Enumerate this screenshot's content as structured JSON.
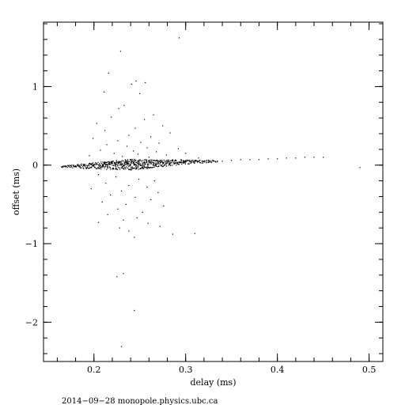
{
  "chart_data": {
    "type": "scatter",
    "xlabel": "delay (ms)",
    "ylabel": "offset (ms)",
    "xlim": [
      0.145,
      0.515
    ],
    "ylim": [
      -2.5,
      1.82
    ],
    "x_ticks": [
      0.2,
      0.3,
      0.4,
      0.5
    ],
    "x_tick_labels": [
      "0.2",
      "0.3",
      "0.4",
      "0.5"
    ],
    "y_ticks": [
      -2,
      -1,
      0,
      1
    ],
    "y_tick_labels": [
      "−2",
      "−1",
      "0",
      "1"
    ],
    "grid": false,
    "marker": "dot",
    "marker_color": "#000000",
    "series": [
      {
        "points": [
          [
            0.165,
            -0.02
          ],
          [
            0.17,
            -0.02
          ],
          [
            0.175,
            -0.01
          ],
          [
            0.18,
            -0.02
          ],
          [
            0.185,
            -0.02
          ],
          [
            0.19,
            -0.01
          ],
          [
            0.195,
            -0.01
          ],
          [
            0.2,
            -0.01
          ],
          [
            0.205,
            0.0
          ],
          [
            0.21,
            0.0
          ],
          [
            0.215,
            0.0
          ],
          [
            0.22,
            0.0
          ],
          [
            0.225,
            0.01
          ],
          [
            0.23,
            0.0
          ],
          [
            0.235,
            0.01
          ],
          [
            0.24,
            0.01
          ],
          [
            0.245,
            0.01
          ],
          [
            0.25,
            0.01
          ],
          [
            0.255,
            0.02
          ],
          [
            0.26,
            0.02
          ],
          [
            0.265,
            0.02
          ],
          [
            0.27,
            0.02
          ],
          [
            0.275,
            0.03
          ],
          [
            0.28,
            0.03
          ],
          [
            0.285,
            0.03
          ],
          [
            0.29,
            0.03
          ],
          [
            0.295,
            0.04
          ],
          [
            0.3,
            0.04
          ],
          [
            0.305,
            0.04
          ],
          [
            0.31,
            0.04
          ],
          [
            0.315,
            0.05
          ],
          [
            0.32,
            0.05
          ],
          [
            0.325,
            0.05
          ],
          [
            0.33,
            0.05
          ],
          [
            0.34,
            0.05
          ],
          [
            0.35,
            0.06
          ],
          [
            0.36,
            0.07
          ],
          [
            0.37,
            0.07
          ],
          [
            0.38,
            0.07
          ],
          [
            0.39,
            0.08
          ],
          [
            0.4,
            0.08
          ],
          [
            0.41,
            0.09
          ],
          [
            0.42,
            0.09
          ],
          [
            0.43,
            0.1
          ],
          [
            0.44,
            0.1
          ],
          [
            0.45,
            0.1
          ],
          [
            0.49,
            -0.03
          ],
          [
            0.229,
            1.45
          ],
          [
            0.293,
            1.62
          ],
          [
            0.216,
            1.17
          ],
          [
            0.246,
            1.07
          ],
          [
            0.241,
            1.03
          ],
          [
            0.256,
            1.05
          ],
          [
            0.211,
            0.93
          ],
          [
            0.25,
            0.91
          ],
          [
            0.233,
            0.76
          ],
          [
            0.227,
            0.72
          ],
          [
            0.265,
            0.64
          ],
          [
            0.219,
            0.61
          ],
          [
            0.255,
            0.58
          ],
          [
            0.203,
            0.53
          ],
          [
            0.275,
            0.5
          ],
          [
            0.245,
            0.47
          ],
          [
            0.212,
            0.44
          ],
          [
            0.283,
            0.41
          ],
          [
            0.238,
            0.38
          ],
          [
            0.262,
            0.36
          ],
          [
            0.199,
            0.34
          ],
          [
            0.226,
            0.31
          ],
          [
            0.251,
            0.29
          ],
          [
            0.271,
            0.28
          ],
          [
            0.214,
            0.26
          ],
          [
            0.236,
            0.24
          ],
          [
            0.258,
            0.22
          ],
          [
            0.292,
            0.21
          ],
          [
            0.207,
            0.19
          ],
          [
            0.243,
            0.18
          ],
          [
            0.268,
            0.17
          ],
          [
            0.222,
            0.15
          ],
          [
            0.248,
            0.14
          ],
          [
            0.279,
            0.13
          ],
          [
            0.195,
            0.12
          ],
          [
            0.231,
            0.11
          ],
          [
            0.26,
            0.1
          ],
          [
            0.3,
            0.15
          ],
          [
            0.314,
            0.09
          ],
          [
            0.205,
            -0.12
          ],
          [
            0.224,
            -0.15
          ],
          [
            0.249,
            -0.18
          ],
          [
            0.266,
            -0.2
          ],
          [
            0.213,
            -0.23
          ],
          [
            0.238,
            -0.26
          ],
          [
            0.258,
            -0.28
          ],
          [
            0.197,
            -0.3
          ],
          [
            0.23,
            -0.33
          ],
          [
            0.27,
            -0.35
          ],
          [
            0.218,
            -0.38
          ],
          [
            0.245,
            -0.41
          ],
          [
            0.262,
            -0.44
          ],
          [
            0.209,
            -0.47
          ],
          [
            0.235,
            -0.5
          ],
          [
            0.276,
            -0.52
          ],
          [
            0.226,
            -0.56
          ],
          [
            0.253,
            -0.6
          ],
          [
            0.215,
            -0.63
          ],
          [
            0.247,
            -0.67
          ],
          [
            0.232,
            -0.7
          ],
          [
            0.259,
            -0.74
          ],
          [
            0.205,
            -0.73
          ],
          [
            0.228,
            -0.8
          ],
          [
            0.272,
            -0.78
          ],
          [
            0.238,
            -0.84
          ],
          [
            0.244,
            -0.92
          ],
          [
            0.286,
            -0.88
          ],
          [
            0.31,
            -0.87
          ],
          [
            0.225,
            -1.42
          ],
          [
            0.232,
            -1.38
          ],
          [
            0.244,
            -1.85
          ],
          [
            0.23,
            -2.31
          ]
        ]
      }
    ],
    "dense_band": {
      "x_range": [
        0.165,
        0.335
      ],
      "center_offset_at_x": [
        [
          0.165,
          -0.02
        ],
        [
          0.2,
          -0.01
        ],
        [
          0.25,
          0.01
        ],
        [
          0.3,
          0.04
        ],
        [
          0.335,
          0.05
        ]
      ],
      "half_width_at_x": [
        [
          0.165,
          0.01
        ],
        [
          0.2,
          0.04
        ],
        [
          0.24,
          0.07
        ],
        [
          0.28,
          0.04
        ],
        [
          0.335,
          0.01
        ]
      ]
    }
  },
  "footer": {
    "text": "2014−09−28  monopole.physics.ubc.ca"
  }
}
